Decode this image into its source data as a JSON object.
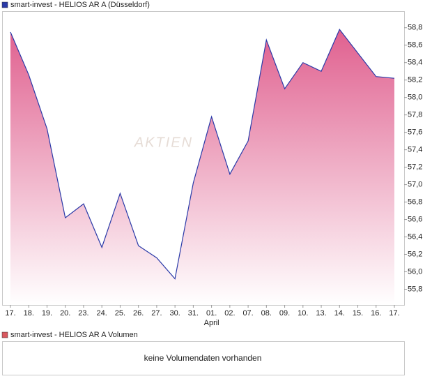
{
  "chart_data": {
    "type": "area",
    "legend_title": "smart-invest - HELIOS AR A (Düsseldorf)",
    "watermark": "AKTIEN",
    "categories": [
      "17.",
      "18.",
      "19.",
      "20.",
      "23.",
      "24.",
      "25.",
      "26.",
      "27.",
      "30.",
      "31.",
      "01.",
      "02.",
      "07.",
      "08.",
      "09.",
      "10.",
      "13.",
      "14.",
      "15.",
      "16.",
      "17."
    ],
    "x_annotation": {
      "category_index": 11,
      "label": "April"
    },
    "series": [
      {
        "name": "smart-invest - HELIOS AR A (Düsseldorf)",
        "color": "#2a3aa8",
        "fill_color": "#e0608f",
        "values": [
          58.75,
          58.26,
          57.64,
          56.62,
          56.78,
          56.28,
          56.9,
          56.3,
          56.16,
          55.92,
          57.02,
          57.78,
          57.12,
          57.5,
          58.66,
          58.1,
          58.4,
          58.3,
          58.78,
          58.51,
          58.24,
          58.22
        ]
      }
    ],
    "ylim": [
      55.62,
      58.99
    ],
    "yticks": [
      {
        "value": 55.8,
        "label": "55,8"
      },
      {
        "value": 56.0,
        "label": "56,0"
      },
      {
        "value": 56.2,
        "label": "56,2"
      },
      {
        "value": 56.4,
        "label": "56,4"
      },
      {
        "value": 56.6,
        "label": "56,6"
      },
      {
        "value": 56.8,
        "label": "56,8"
      },
      {
        "value": 57.0,
        "label": "57,0"
      },
      {
        "value": 57.2,
        "label": "57,2"
      },
      {
        "value": 57.4,
        "label": "57,4"
      },
      {
        "value": 57.6,
        "label": "57,6"
      },
      {
        "value": 57.8,
        "label": "57,8"
      },
      {
        "value": 58.0,
        "label": "58,0"
      },
      {
        "value": 58.2,
        "label": "58,2"
      },
      {
        "value": 58.4,
        "label": "58,4"
      },
      {
        "value": 58.6,
        "label": "58,6"
      },
      {
        "value": 58.8,
        "label": "58,8"
      }
    ],
    "y_axis_side": "right"
  },
  "volume_panel": {
    "legend_title": "smart-invest - HELIOS AR A Volumen",
    "color": "#d9595f",
    "message": "keine Volumendaten vorhanden"
  }
}
